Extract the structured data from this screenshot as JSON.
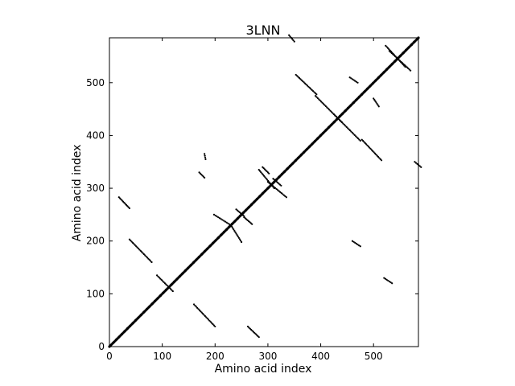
{
  "chart_data": {
    "type": "scatter",
    "title": "3LNN",
    "xlabel": "Amino acid index",
    "ylabel": "Amino acid index",
    "xlim": [
      0,
      585
    ],
    "ylim": [
      0,
      585
    ],
    "xticks": [
      0,
      100,
      200,
      300,
      400,
      500
    ],
    "yticks": [
      0,
      100,
      200,
      300,
      400,
      500
    ],
    "xtick_labels": [
      "0",
      "100",
      "200",
      "300",
      "400",
      "500"
    ],
    "ytick_labels": [
      "0",
      "100",
      "200",
      "300",
      "400",
      "500"
    ],
    "grid": false,
    "legend": "none",
    "marker_color": "#000000",
    "diagonal": {
      "x": [
        0,
        585
      ],
      "y": [
        0,
        585
      ]
    },
    "contact_segments": [
      {
        "x": [
          0,
          585
        ],
        "y": [
          0,
          585
        ]
      },
      {
        "x": [
          38,
          80
        ],
        "y": [
          203,
          160
        ]
      },
      {
        "x": [
          160,
          200
        ],
        "y": [
          80,
          38
        ]
      },
      {
        "x": [
          90,
          120
        ],
        "y": [
          135,
          105
        ]
      },
      {
        "x": [
          18,
          38
        ],
        "y": [
          283,
          262
        ]
      },
      {
        "x": [
          262,
          283
        ],
        "y": [
          38,
          18
        ]
      },
      {
        "x": [
          353,
          392
        ],
        "y": [
          515,
          478
        ]
      },
      {
        "x": [
          478,
          515
        ],
        "y": [
          392,
          353
        ]
      },
      {
        "x": [
          390,
          440
        ],
        "y": [
          475,
          425
        ]
      },
      {
        "x": [
          425,
          475
        ],
        "y": [
          440,
          390
        ]
      },
      {
        "x": [
          523,
          560
        ],
        "y": [
          570,
          530
        ]
      },
      {
        "x": [
          530,
          570
        ],
        "y": [
          560,
          523
        ]
      },
      {
        "x": [
          198,
          230
        ],
        "y": [
          250,
          230
        ]
      },
      {
        "x": [
          230,
          250
        ],
        "y": [
          230,
          198
        ]
      },
      {
        "x": [
          283,
          312
        ],
        "y": [
          335,
          300
        ]
      },
      {
        "x": [
          300,
          335
        ],
        "y": [
          312,
          283
        ]
      },
      {
        "x": [
          240,
          255
        ],
        "y": [
          260,
          247
        ]
      },
      {
        "x": [
          255,
          270
        ],
        "y": [
          245,
          232
        ]
      },
      {
        "x": [
          290,
          302
        ],
        "y": [
          340,
          328
        ]
      },
      {
        "x": [
          310,
          325
        ],
        "y": [
          318,
          305
        ]
      },
      {
        "x": [
          455,
          470
        ],
        "y": [
          510,
          500
        ]
      },
      {
        "x": [
          500,
          510
        ],
        "y": [
          470,
          455
        ]
      },
      {
        "x": [
          340,
          350
        ],
        "y": [
          590,
          578
        ]
      },
      {
        "x": [
          578,
          590
        ],
        "y": [
          350,
          340
        ]
      },
      {
        "x": [
          460,
          475
        ],
        "y": [
          200,
          190
        ]
      },
      {
        "x": [
          520,
          535
        ],
        "y": [
          130,
          120
        ]
      },
      {
        "x": [
          170,
          180
        ],
        "y": [
          330,
          320
        ]
      },
      {
        "x": [
          180,
          182
        ],
        "y": [
          365,
          355
        ]
      }
    ]
  }
}
